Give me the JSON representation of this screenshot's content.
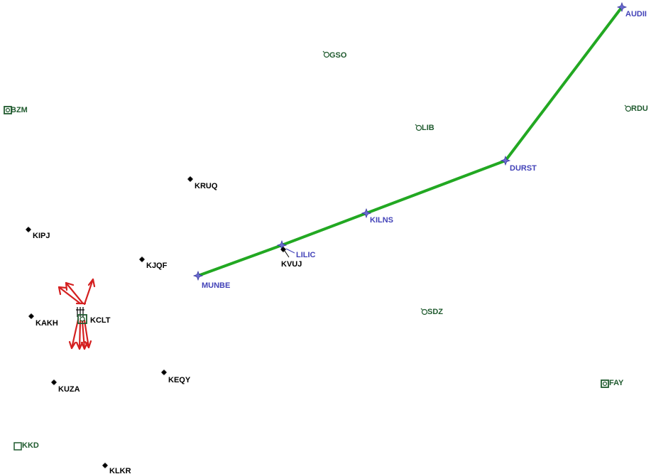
{
  "colors": {
    "route": "#22a822",
    "waypoint": "#4242b8",
    "navaid": "#1f5a2e",
    "airport": "#000000",
    "arrows": "#d42020"
  },
  "route": {
    "waypoints": [
      "MUNBE",
      "LILIC",
      "KILNS",
      "DURST",
      "AUDII"
    ]
  },
  "waypoints": {
    "audii": "AUDII",
    "durst": "DURST",
    "kilns": "KILNS",
    "lilic": "LILIC",
    "munbe": "MUNBE"
  },
  "navaids": {
    "gso": "GSO",
    "lib": "LIB",
    "rdu": "RDU",
    "sdz": "SDZ",
    "bzm": "BZM",
    "fay": "FAY",
    "kkd": "KKD"
  },
  "airports": {
    "kruq": "KRUQ",
    "kipj": "KIPJ",
    "kjqf": "KJQF",
    "kvuj": "KVUJ",
    "kakh": "KAKH",
    "kclt": "KCLT",
    "kuza": "KUZA",
    "keqy": "KEQY",
    "klkr": "KLKR"
  }
}
